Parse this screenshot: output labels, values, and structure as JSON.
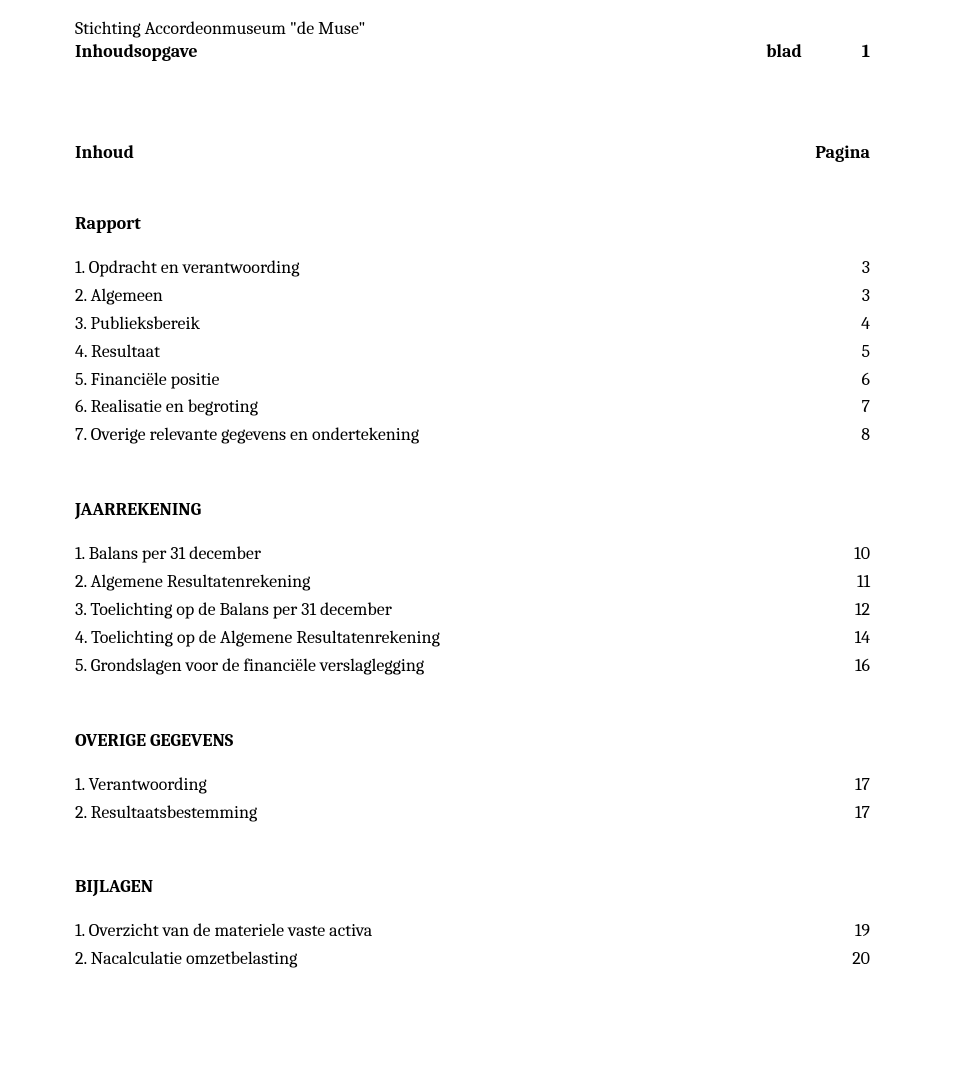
{
  "header": {
    "org": "Stichting Accordeonmuseum \"de Muse\"",
    "title": "Inhoudsopgave",
    "blad_label": "blad",
    "blad_num": "1"
  },
  "columns": {
    "inhoud": "Inhoud",
    "pagina": "Pagina"
  },
  "sections": {
    "rapport": {
      "title": "Rapport",
      "items": [
        {
          "label": "1. Opdracht en verantwoording",
          "page": "3"
        },
        {
          "label": "2. Algemeen",
          "page": "3"
        },
        {
          "label": "3. Publieksbereik",
          "page": "4"
        },
        {
          "label": "4. Resultaat",
          "page": "5"
        },
        {
          "label": "5. Financiële positie",
          "page": "6"
        },
        {
          "label": "6. Realisatie en begroting",
          "page": "7"
        },
        {
          "label": "7. Overige relevante gegevens en ondertekening",
          "page": "8"
        }
      ]
    },
    "jaarrekening": {
      "title": "JAARREKENING",
      "items": [
        {
          "label": "1. Balans per 31 december",
          "page": "10"
        },
        {
          "label": "2. Algemene Resultatenrekening",
          "page": "11"
        },
        {
          "label": "3. Toelichting op de Balans per 31 december",
          "page": "12"
        },
        {
          "label": "4. Toelichting op de Algemene Resultatenrekening",
          "page": "14"
        },
        {
          "label": "5. Grondslagen voor de financiële verslaglegging",
          "page": "16"
        }
      ]
    },
    "overige": {
      "title": "OVERIGE GEGEVENS",
      "items": [
        {
          "label": "1. Verantwoording",
          "page": "17"
        },
        {
          "label": "2. Resultaatsbestemming",
          "page": "17"
        }
      ]
    },
    "bijlagen": {
      "title": "BIJLAGEN",
      "items": [
        {
          "label": "1. Overzicht van de materiele vaste activa",
          "page": "19"
        },
        {
          "label": "2. Nacalculatie omzetbelasting",
          "page": "20"
        }
      ]
    }
  }
}
